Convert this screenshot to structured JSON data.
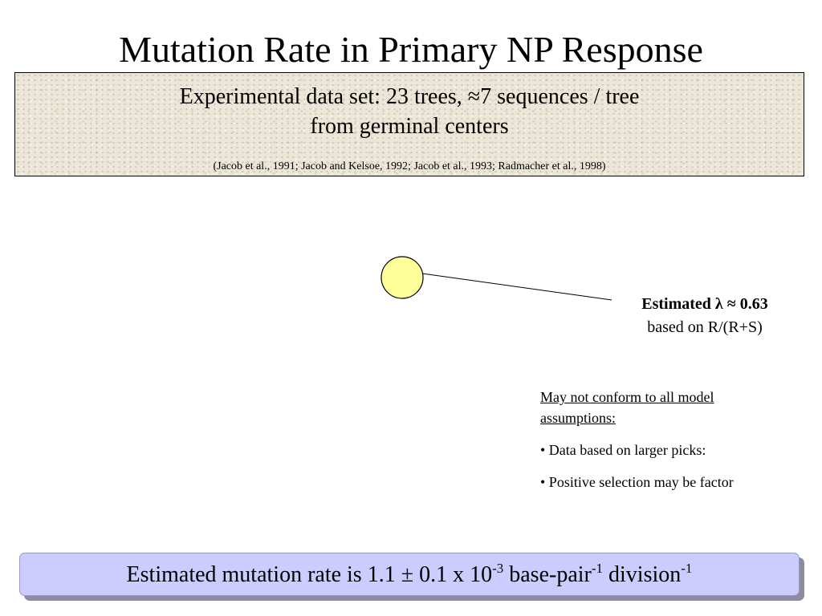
{
  "title": "Mutation Rate in Primary NP Response",
  "dataset_box": {
    "line1": "Experimental data set: 23 trees, ≈7 sequences / tree",
    "line2": "from germinal centers",
    "citation": "(Jacob et al., 1991; Jacob and Kelsoe, 1992; Jacob et al., 1993; Radmacher et al., 1998)"
  },
  "estimate": {
    "line1": "Estimated λ ≈ 0.63",
    "line2": "based on R/(R+S)"
  },
  "notes": {
    "heading": "May not conform to all model assumptions:",
    "bullets": [
      "• Data based on larger picks:",
      "• Positive selection may be factor"
    ]
  },
  "conclusion": {
    "text_before": "Estimated mutation rate is 1.1 ± 0.1 x 10",
    "exp1": "-3",
    "text_mid": " base-pair",
    "exp2": "-1",
    "text_mid2": " division",
    "exp3": "-1"
  },
  "colors": {
    "circle_fill": "#ffff99",
    "banner_fill": "#ccccff",
    "box_fill": "#ece6d8"
  }
}
